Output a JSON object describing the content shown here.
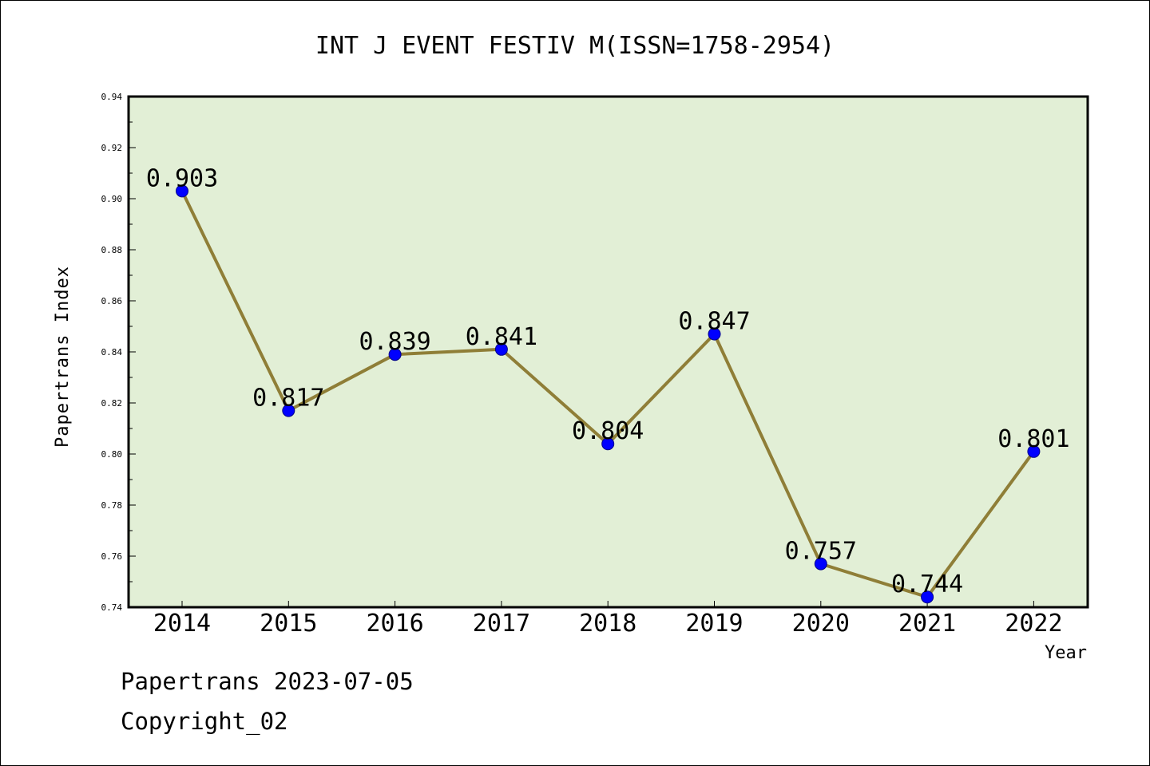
{
  "chart_data": {
    "type": "line",
    "title": "INT J EVENT FESTIV M(ISSN=1758-2954)",
    "xlabel": "Year",
    "ylabel": "Papertrans Index",
    "categories": [
      "2014",
      "2015",
      "2016",
      "2017",
      "2018",
      "2019",
      "2020",
      "2021",
      "2022"
    ],
    "values": [
      0.903,
      0.817,
      0.839,
      0.841,
      0.804,
      0.847,
      0.757,
      0.744,
      0.801
    ],
    "data_labels": [
      "0.903",
      "0.817",
      "0.839",
      "0.841",
      "0.804",
      "0.847",
      "0.757",
      "0.744",
      "0.801"
    ],
    "ylim": [
      0.74,
      0.94
    ],
    "yticks": [
      "0.74",
      "0.76",
      "0.78",
      "0.80",
      "0.82",
      "0.84",
      "0.86",
      "0.88",
      "0.90",
      "0.92",
      "0.94"
    ],
    "grid": false,
    "colors": {
      "plot_background": "#e2efd6",
      "line": "#8f7e37",
      "marker": "#0000ff"
    }
  },
  "footer": {
    "source": "Papertrans 2023-07-05",
    "copyright": "Copyright_02"
  }
}
